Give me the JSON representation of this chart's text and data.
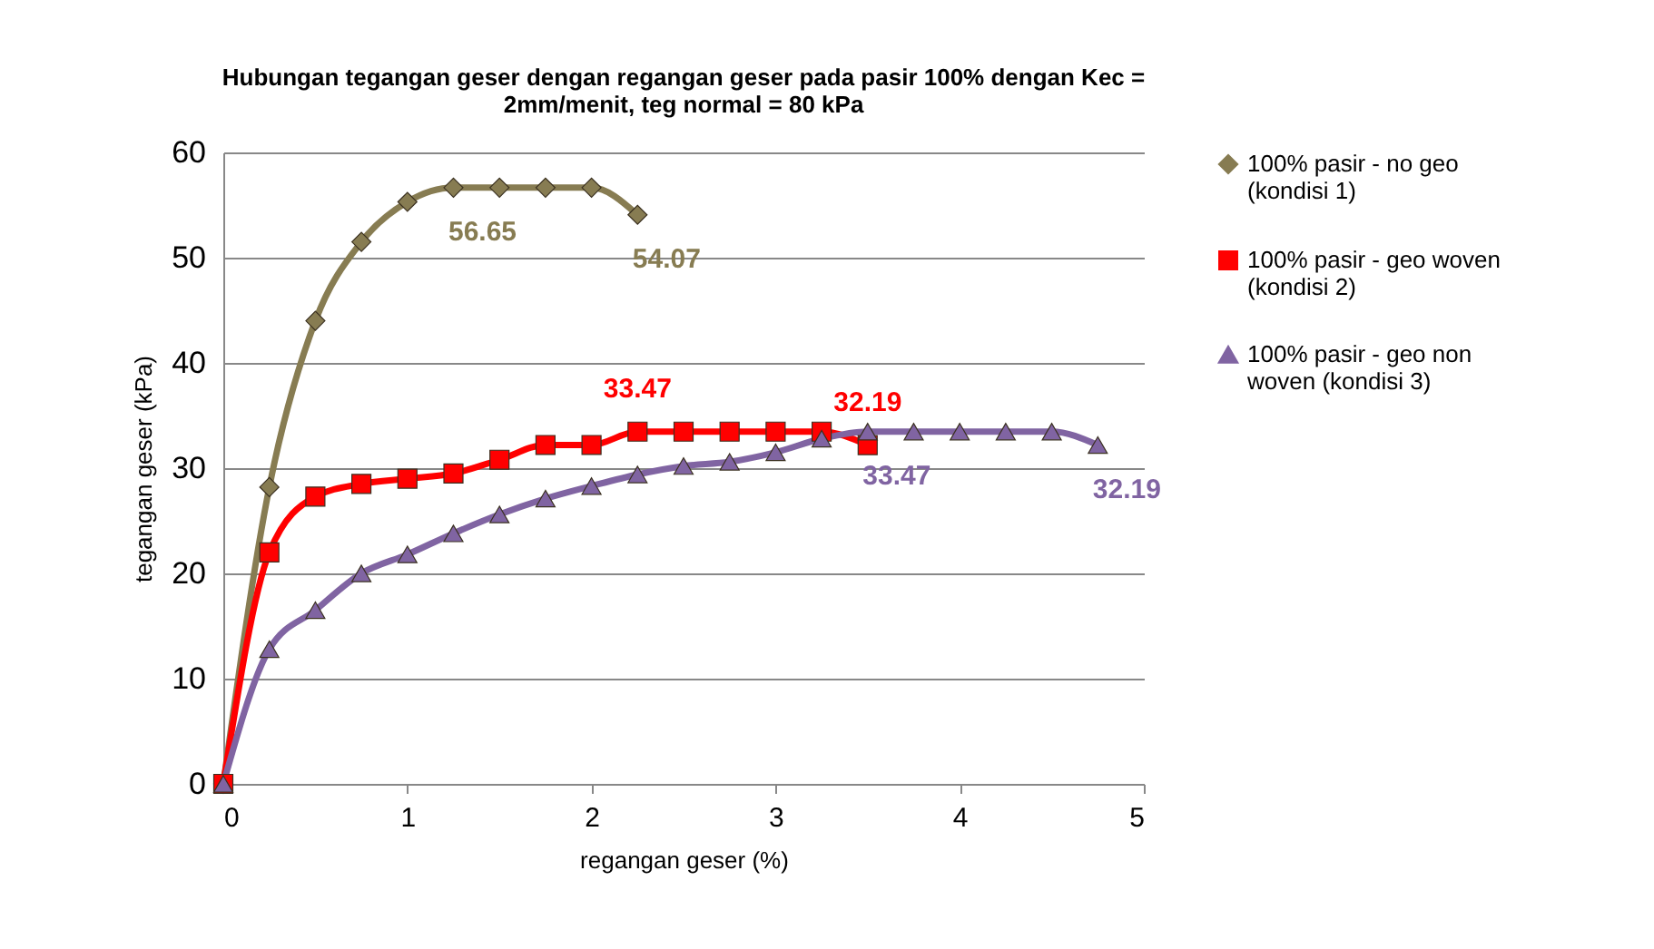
{
  "chart_data": {
    "type": "line",
    "title": "Hubungan tegangan geser dengan regangan geser pada pasir 100% dengan Kec = 2mm/menit, teg normal = 80 kPa",
    "xlabel": "regangan geser (%)",
    "ylabel": "tegangan geser (kPa)",
    "xlim": [
      0,
      5
    ],
    "xticks": [
      0,
      1,
      2,
      3,
      4,
      5
    ],
    "ylim": [
      0,
      60
    ],
    "yticks": [
      0,
      10,
      20,
      30,
      40,
      50,
      60
    ],
    "grid": "y",
    "legend": "right",
    "series": [
      {
        "name": "100% pasir - no geo (kondisi 1)",
        "color": "#877c52",
        "marker": "diamond",
        "x": [
          0,
          0.25,
          0.5,
          0.75,
          1,
          1.25,
          1.5,
          1.75,
          2,
          2.25
        ],
        "values": [
          0,
          28.2,
          44,
          51.5,
          55.3,
          56.65,
          56.65,
          56.65,
          56.65,
          54.07
        ]
      },
      {
        "name": "100% pasir - geo woven (kondisi 2)",
        "color": "#ff0000",
        "marker": "square",
        "x": [
          0,
          0.25,
          0.5,
          0.75,
          1,
          1.25,
          1.5,
          1.75,
          2,
          2.25,
          2.5,
          2.75,
          3,
          3.25,
          3.5
        ],
        "values": [
          0,
          22,
          27.3,
          28.5,
          29,
          29.5,
          30.8,
          32.2,
          32.2,
          33.47,
          33.47,
          33.47,
          33.47,
          33.47,
          32.19
        ]
      },
      {
        "name": "100% pasir - geo non woven (kondisi 3)",
        "color": "#8064a2",
        "marker": "triangle",
        "x": [
          0,
          0.25,
          0.5,
          0.75,
          1,
          1.25,
          1.5,
          1.75,
          2,
          2.25,
          2.5,
          2.75,
          3,
          3.25,
          3.5,
          3.75,
          4,
          4.25,
          4.5,
          4.75
        ],
        "values": [
          0,
          12.8,
          16.5,
          20,
          21.8,
          23.8,
          25.6,
          27.1,
          28.3,
          29.4,
          30.2,
          30.6,
          31.5,
          32.8,
          33.47,
          33.47,
          33.47,
          33.47,
          33.47,
          32.19
        ]
      }
    ],
    "annotations": [
      {
        "text": "56.65",
        "x": 1.25,
        "y": 56.65
      },
      {
        "text": "54.07",
        "x": 2.25,
        "y": 54.07
      },
      {
        "text": "33.47",
        "x": 2.25,
        "y": 33.47
      },
      {
        "text": "32.19",
        "x": 3.5,
        "y": 32.19
      },
      {
        "text": "33.47",
        "x": 3.5,
        "y": 33.47
      },
      {
        "text": "32.19",
        "x": 4.75,
        "y": 32.19
      }
    ]
  }
}
